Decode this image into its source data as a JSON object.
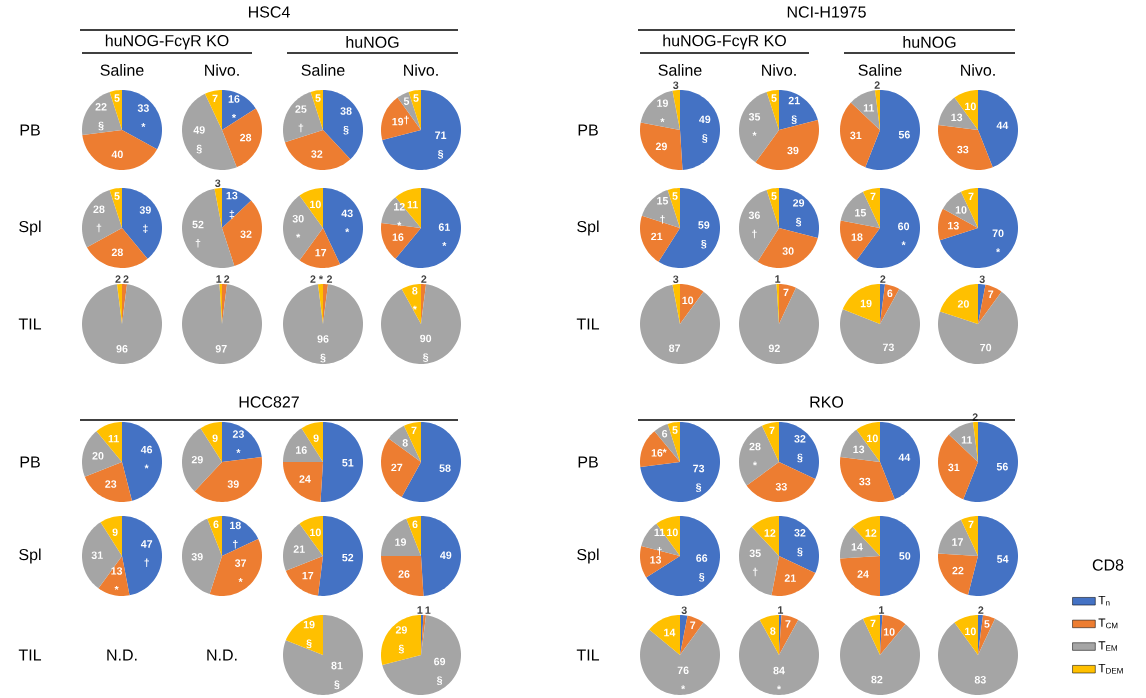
{
  "chart_data": {
    "type": "pie",
    "categories": [
      "T$_{n}$",
      "T$_{CM}$",
      "T$_{EM}$",
      "T$_{DEM}$"
    ],
    "colors": [
      "#4472c4",
      "#ed7d31",
      "#a5a5a5",
      "#ffc000"
    ],
    "legend": "right",
    "legend_title": "CD8",
    "annotations": [
      "HSC4",
      "huNOG-FcγR  KO",
      "huNOG",
      "Saline",
      "Nivo.",
      "Saline",
      "Nivo.",
      "PB",
      "Spl",
      "TIL",
      "NCI-H1975",
      "huNOG-FcγR  KO",
      "huNOG",
      "Saline",
      "Nivo.",
      "Saline",
      "Nivo.",
      "PB",
      "Spl",
      "TIL",
      "HCC827",
      "PB",
      "Spl",
      "TIL",
      "N.D.",
      "N.D.",
      "RKO",
      "PB",
      "Spl",
      "TIL"
    ],
    "series": [
      {
        "values": [
          33,
          40,
          22,
          5
        ],
        "value_labels": [
          "33 *",
          "40",
          "22 §",
          "5"
        ]
      },
      {
        "values": [
          16,
          28,
          49,
          7
        ],
        "value_labels": [
          "16 *",
          "28",
          "49 §",
          "7"
        ]
      },
      {
        "values": [
          38,
          32,
          25,
          5
        ],
        "value_labels": [
          "38 §",
          "32",
          "25 †",
          "5"
        ]
      },
      {
        "values": [
          71,
          19,
          5,
          5
        ],
        "value_labels": [
          "71 §",
          "19",
          "5 †",
          "5"
        ]
      },
      {
        "values": [
          39,
          28,
          28,
          5
        ],
        "value_labels": [
          "39 ‡",
          "28",
          "28 †",
          "5"
        ]
      },
      {
        "values": [
          13,
          32,
          52,
          3
        ],
        "value_labels": [
          "13 ‡",
          "32",
          "52 †",
          "3"
        ]
      },
      {
        "values": [
          43,
          17,
          30,
          10
        ],
        "value_labels": [
          "43 *",
          "17",
          "30 *",
          "10"
        ]
      },
      {
        "values": [
          61,
          16,
          12,
          11
        ],
        "value_labels": [
          "61 *",
          "16",
          "12 *",
          "11"
        ]
      },
      {
        "values": [
          0,
          2,
          96,
          2
        ],
        "value_labels": [
          null,
          "2",
          "96",
          "2"
        ]
      },
      {
        "values": [
          0,
          2,
          97,
          1
        ],
        "value_labels": [
          null,
          "2",
          "97",
          "1"
        ]
      },
      {
        "values": [
          0,
          2,
          96,
          2
        ],
        "value_labels": [
          null,
          "2",
          "96 §",
          "2 *"
        ]
      },
      {
        "values": [
          0,
          2,
          90,
          8
        ],
        "value_labels": [
          null,
          "2",
          "90 §",
          "8 *"
        ]
      },
      {
        "values": [
          49,
          29,
          19,
          3
        ],
        "value_labels": [
          "49 §",
          "29",
          "19 *",
          "3"
        ]
      },
      {
        "values": [
          21,
          39,
          35,
          5
        ],
        "value_labels": [
          "21 §",
          "39",
          "35 *",
          "5"
        ]
      },
      {
        "values": [
          56,
          31,
          11,
          2
        ],
        "value_labels": [
          "56",
          "31",
          "11",
          "2"
        ]
      },
      {
        "values": [
          44,
          33,
          13,
          10
        ],
        "value_labels": [
          "44",
          "33",
          "13",
          "10"
        ]
      },
      {
        "values": [
          59,
          21,
          15,
          5
        ],
        "value_labels": [
          "59 §",
          "21",
          "15 †",
          "5"
        ]
      },
      {
        "values": [
          29,
          30,
          36,
          5
        ],
        "value_labels": [
          "29 §",
          "30",
          "36 †",
          "5"
        ]
      },
      {
        "values": [
          60,
          18,
          15,
          7
        ],
        "value_labels": [
          "60 *",
          "18",
          "15",
          "7"
        ]
      },
      {
        "values": [
          70,
          13,
          10,
          7
        ],
        "value_labels": [
          "70 *",
          "13",
          "10",
          "7"
        ]
      },
      {
        "values": [
          0,
          10,
          87,
          3
        ],
        "value_labels": [
          null,
          "10",
          "87",
          "3"
        ]
      },
      {
        "values": [
          0,
          7,
          92,
          1
        ],
        "value_labels": [
          null,
          "7",
          "92",
          "1"
        ]
      },
      {
        "values": [
          2,
          6,
          73,
          19
        ],
        "value_labels": [
          "2",
          "6",
          "73",
          "19"
        ]
      },
      {
        "values": [
          3,
          7,
          70,
          20
        ],
        "value_labels": [
          "3",
          "7",
          "70",
          "20"
        ]
      },
      {
        "values": [
          46,
          23,
          20,
          11
        ],
        "value_labels": [
          "46 *",
          "23",
          "20",
          "11"
        ]
      },
      {
        "values": [
          23,
          39,
          29,
          9
        ],
        "value_labels": [
          "23 *",
          "39",
          "29",
          "9"
        ]
      },
      {
        "values": [
          51,
          24,
          16,
          9
        ],
        "value_labels": [
          "51",
          "24",
          "16",
          "9"
        ]
      },
      {
        "values": [
          58,
          27,
          8,
          7
        ],
        "value_labels": [
          "58",
          "27",
          "8",
          "7"
        ]
      },
      {
        "values": [
          47,
          13,
          31,
          9
        ],
        "value_labels": [
          "47 †",
          "13 *",
          "31",
          "9"
        ]
      },
      {
        "values": [
          18,
          37,
          39,
          6
        ],
        "value_labels": [
          "18 †",
          "37 *",
          "39",
          "6"
        ]
      },
      {
        "values": [
          52,
          17,
          21,
          10
        ],
        "value_labels": [
          "52",
          "17",
          "21",
          "10"
        ]
      },
      {
        "values": [
          49,
          26,
          19,
          6
        ],
        "value_labels": [
          "49",
          "26",
          "19",
          "6"
        ]
      },
      {
        "values": [
          0,
          0,
          81,
          19
        ],
        "value_labels": [
          null,
          null,
          "81 §",
          "19 §"
        ]
      },
      {
        "values": [
          1,
          1,
          69,
          29
        ],
        "value_labels": [
          "1",
          "1",
          "69 §",
          "29 §"
        ]
      },
      {
        "values": [
          73,
          16,
          6,
          5
        ],
        "value_labels": [
          "73 §",
          "16",
          "6 *",
          "5"
        ]
      },
      {
        "values": [
          32,
          33,
          28,
          7
        ],
        "value_labels": [
          "32 §",
          "33",
          "28 *",
          "7"
        ]
      },
      {
        "values": [
          44,
          33,
          13,
          10
        ],
        "value_labels": [
          "44",
          "33",
          "13",
          "10"
        ]
      },
      {
        "values": [
          56,
          31,
          11,
          2
        ],
        "value_labels": [
          "56",
          "31",
          "11",
          "2"
        ]
      },
      {
        "values": [
          66,
          13,
          11,
          10
        ],
        "value_labels": [
          "66 §",
          "13",
          "11 †",
          "10"
        ]
      },
      {
        "values": [
          32,
          21,
          35,
          12
        ],
        "value_labels": [
          "32 §",
          "21",
          "35 †",
          "12"
        ]
      },
      {
        "values": [
          50,
          24,
          14,
          12
        ],
        "value_labels": [
          "50",
          "24",
          "14",
          "12"
        ]
      },
      {
        "values": [
          54,
          22,
          17,
          7
        ],
        "value_labels": [
          "54",
          "22",
          "17",
          "7"
        ]
      },
      {
        "values": [
          3,
          7,
          76,
          14
        ],
        "value_labels": [
          "3",
          "7",
          "76 *",
          "14"
        ]
      },
      {
        "values": [
          1,
          7,
          84,
          8
        ],
        "value_labels": [
          "1",
          "7",
          "84 *",
          "8"
        ]
      },
      {
        "values": [
          1,
          10,
          82,
          7
        ],
        "value_labels": [
          "1",
          "10",
          "82",
          "7"
        ]
      },
      {
        "values": [
          2,
          5,
          83,
          10
        ],
        "value_labels": [
          "2",
          "5",
          "83",
          "10"
        ]
      }
    ]
  }
}
